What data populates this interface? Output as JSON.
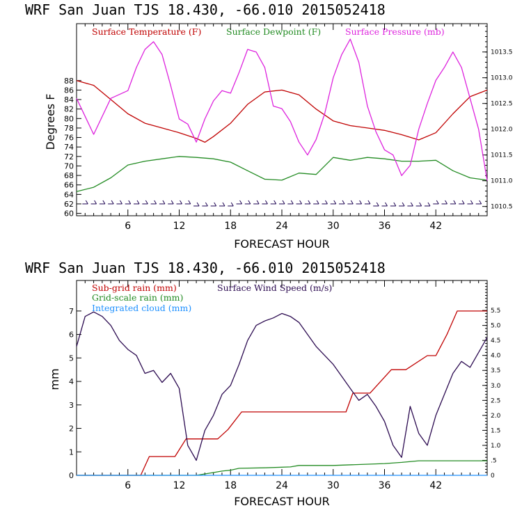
{
  "chart_data": [
    {
      "type": "line",
      "title": "WRF   San Juan TJS  18.430, -66.010  2015052418",
      "xlabel": "FORECAST HOUR",
      "ylabel": "Degrees F",
      "xlim": [
        0,
        48
      ],
      "xticks": [
        "6",
        "12",
        "18",
        "24",
        "30",
        "36",
        "42"
      ],
      "ylim": [
        59.5,
        100
      ],
      "yticks": [
        "60",
        "62",
        "64",
        "66",
        "68",
        "70",
        "72",
        "74",
        "76",
        "78",
        "80",
        "82",
        "84",
        "86",
        "88"
      ],
      "y2lim": [
        1010.32,
        1014.05
      ],
      "y2ticks": [
        "1010.5",
        "1011.0",
        "1011.5",
        "1012.0",
        "1012.5",
        "1013.0",
        "1013.5"
      ],
      "legend": [
        "Surface Temperature (F)",
        "Surface Dewpoint (F)",
        "Surface Pressure (mb)"
      ],
      "colors": {
        "temperature": "#c00000",
        "dewpoint": "#228b22",
        "pressure": "#dd22dd",
        "wind_barbs": "#1a0050"
      },
      "series": [
        {
          "name": "Surface Temperature (F)",
          "axis": "left",
          "x": [
            0,
            2,
            4,
            6,
            8,
            10,
            12,
            14,
            15,
            16,
            18,
            20,
            22,
            24,
            26,
            28,
            30,
            32,
            34,
            36,
            38,
            40,
            42,
            44,
            46,
            48
          ],
          "values": [
            88,
            87,
            84,
            81,
            79,
            78,
            77,
            75.8,
            75,
            76.2,
            79,
            83,
            85.6,
            86,
            85,
            82,
            79.5,
            78.5,
            78,
            77.5,
            76.6,
            75.5,
            77,
            81,
            84.6,
            86
          ]
        },
        {
          "name": "Surface Dewpoint (F)",
          "axis": "left",
          "x": [
            0,
            2,
            4,
            6,
            8,
            10,
            12,
            14,
            16,
            18,
            20,
            22,
            24,
            26,
            28,
            30,
            32,
            34,
            36,
            38,
            40,
            42,
            44,
            46,
            48
          ],
          "values": [
            64.6,
            65.5,
            67.5,
            70.2,
            71,
            71.5,
            72,
            71.8,
            71.5,
            70.8,
            69,
            67.2,
            67,
            68.5,
            68.2,
            71.8,
            71.2,
            71.8,
            71.5,
            71,
            71,
            71.2,
            69,
            67.5,
            67
          ]
        },
        {
          "name": "Surface Pressure (mb)",
          "axis": "right",
          "x": [
            0,
            2,
            4,
            6,
            7,
            8,
            9,
            10,
            11,
            12,
            13,
            14,
            15,
            16,
            17,
            18,
            19,
            20,
            21,
            22,
            23,
            24,
            25,
            26,
            27,
            28,
            29,
            30,
            31,
            32,
            33,
            34,
            35,
            36,
            37,
            38,
            39,
            40,
            41,
            42,
            43,
            44,
            45,
            46,
            47,
            48
          ],
          "values": [
            1012.6,
            1011.9,
            1012.6,
            1012.75,
            1013.2,
            1013.55,
            1013.7,
            1013.45,
            1012.85,
            1012.2,
            1012.1,
            1011.75,
            1012.2,
            1012.55,
            1012.75,
            1012.7,
            1013.1,
            1013.55,
            1013.5,
            1013.2,
            1012.45,
            1012.4,
            1012.15,
            1011.75,
            1011.5,
            1011.8,
            1012.3,
            1013.0,
            1013.45,
            1013.75,
            1013.3,
            1012.45,
            1011.95,
            1011.6,
            1011.5,
            1011.1,
            1011.3,
            1012.0,
            1012.5,
            1012.95,
            1013.2,
            1013.5,
            1013.2,
            1012.6,
            1012.0,
            1011.0
          ]
        }
      ]
    },
    {
      "type": "line",
      "title": "WRF   San Juan TJS  18.430, -66.010  2015052418",
      "xlabel": "FORECAST HOUR",
      "ylabel": "mm",
      "xlim": [
        0,
        48
      ],
      "xticks": [
        "6",
        "12",
        "18",
        "24",
        "30",
        "36",
        "42"
      ],
      "ylim": [
        0,
        8.3
      ],
      "yticks": [
        "0",
        "1",
        "2",
        "3",
        "4",
        "5",
        "6",
        "7"
      ],
      "y2lim": [
        0,
        6.5
      ],
      "y2ticks": [
        "0",
        ".5",
        "1.0",
        "1.5",
        "2.0",
        "2.5",
        "3.0",
        "3.5",
        "4.0",
        "4.5",
        "5.0",
        "5.5"
      ],
      "legend": [
        "Sub-grid rain (mm)",
        "Grid-scale rain (mm)",
        "Integrated cloud (mm)",
        "Surface Wind Speed (m/s)"
      ],
      "colors": {
        "subgrid": "#c00000",
        "gridscale": "#228b22",
        "cloud": "#1e90ff",
        "wind": "#2b0a50"
      },
      "series": [
        {
          "name": "Sub-grid rain (mm)",
          "axis": "left",
          "step": true,
          "x": [
            0,
            7.5,
            8.5,
            11.5,
            12.8,
            16.5,
            17.7,
            19.3,
            31.5,
            32.3,
            34.3,
            36.8,
            38.5,
            41,
            42,
            43.3,
            44.5,
            48
          ],
          "values": [
            0,
            0,
            0.8,
            0.8,
            1.55,
            1.55,
            1.95,
            2.7,
            2.7,
            3.5,
            3.5,
            4.5,
            4.5,
            5.1,
            5.1,
            6,
            7,
            7
          ]
        },
        {
          "name": "Grid-scale rain (mm)",
          "axis": "left",
          "x": [
            0,
            14,
            16,
            17,
            18,
            19,
            22,
            25,
            26,
            30,
            36,
            38,
            40,
            48
          ],
          "values": [
            0,
            0,
            0.12,
            0.18,
            0.22,
            0.3,
            0.32,
            0.36,
            0.42,
            0.42,
            0.5,
            0.55,
            0.62,
            0.62
          ]
        },
        {
          "name": "Integrated cloud (mm)",
          "axis": "left",
          "x": [
            0,
            48
          ],
          "values": [
            0,
            0
          ]
        },
        {
          "name": "Surface Wind Speed (m/s)",
          "axis": "right",
          "x": [
            0,
            1,
            2,
            3,
            4,
            5,
            6,
            7,
            8,
            9,
            10,
            11,
            12,
            13,
            14,
            15,
            16,
            17,
            18,
            19,
            20,
            21,
            22,
            23,
            24,
            25,
            26,
            27,
            28,
            29,
            30,
            31,
            32,
            33,
            34,
            35,
            36,
            37,
            38,
            39,
            40,
            41,
            42,
            43,
            44,
            45,
            46,
            47,
            48
          ],
          "values": [
            4.3,
            5.3,
            5.45,
            5.3,
            5.0,
            4.5,
            4.2,
            4.0,
            3.4,
            3.5,
            3.1,
            3.4,
            2.9,
            1.0,
            0.5,
            1.5,
            2.0,
            2.7,
            3.0,
            3.7,
            4.5,
            5.0,
            5.15,
            5.25,
            5.4,
            5.3,
            5.1,
            4.7,
            4.3,
            4.0,
            3.7,
            3.3,
            2.9,
            2.5,
            2.7,
            2.3,
            1.8,
            1.0,
            0.6,
            2.3,
            1.4,
            1.0,
            2.0,
            2.7,
            3.4,
            3.8,
            3.6,
            4.1,
            4.6
          ]
        }
      ]
    }
  ]
}
